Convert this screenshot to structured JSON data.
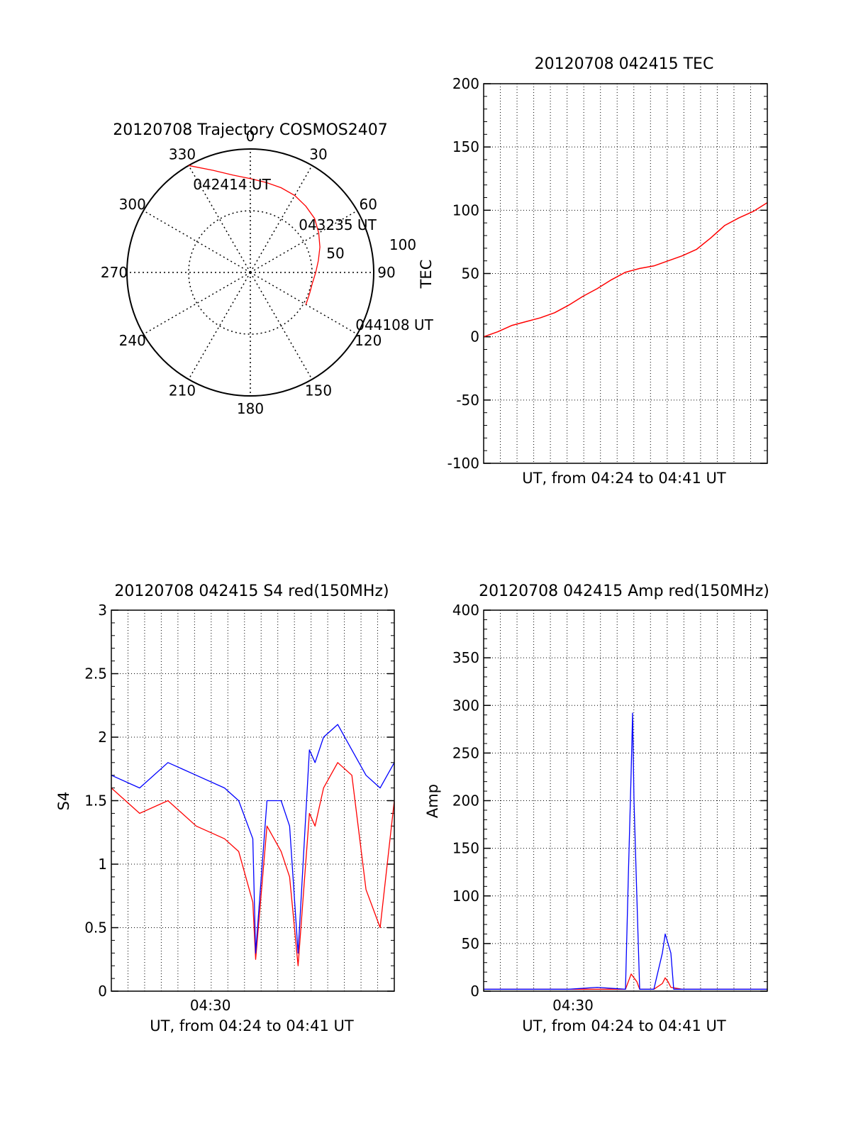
{
  "colors": {
    "red": "#ff0000",
    "blue": "#0000ff",
    "axis": "#000000"
  },
  "chart_data": [
    {
      "type": "polar",
      "title": "20120708 Trajectory COSMOS2407",
      "azimuth_labels": [
        "0",
        "30",
        "60",
        "90",
        "120",
        "150",
        "180",
        "210",
        "240",
        "270",
        "300",
        "330"
      ],
      "radius_labels": [
        "50",
        "100"
      ],
      "radius_range": [
        0,
        100
      ],
      "grid": true,
      "trajectory": {
        "azimuth_deg": [
          330,
          340,
          350,
          0,
          10,
          20,
          30,
          40,
          50,
          60,
          70,
          80,
          90,
          100,
          110,
          120
        ],
        "radius": [
          100,
          88,
          80,
          76,
          74,
          73,
          72,
          70,
          68,
          64,
          60,
          56,
          53,
          51,
          51,
          52
        ]
      },
      "annotations": [
        {
          "text": "042414 UT",
          "azimuth_deg": 330
        },
        {
          "text": "043235 UT",
          "azimuth_deg": 66
        },
        {
          "text": "044108 UT",
          "azimuth_deg": 118
        }
      ]
    },
    {
      "type": "line",
      "title": "20120708 042415 TEC",
      "xlabel": "UT, from 04:24 to 04:41 UT",
      "ylabel": "TEC",
      "ylim": [
        -100,
        200
      ],
      "yticks": [
        "-100",
        "-50",
        "0",
        "50",
        "100",
        "150",
        "200"
      ],
      "grid": true,
      "series": [
        {
          "x": [
            0,
            0.05,
            0.1,
            0.15,
            0.2,
            0.25,
            0.3,
            0.35,
            0.4,
            0.45,
            0.5,
            0.55,
            0.6,
            0.65,
            0.7,
            0.75,
            0.8,
            0.85,
            0.9,
            0.95,
            1.0
          ],
          "values": [
            0,
            4,
            9,
            12,
            15,
            19,
            25,
            32,
            38,
            45,
            51,
            54,
            56,
            60,
            64,
            69,
            78,
            88,
            94,
            99,
            106
          ]
        }
      ]
    },
    {
      "type": "line",
      "title": "20120708 042415 S4 red(150MHz)",
      "xlabel": "UT, from 04:24 to 04:41 UT",
      "ylabel": "S4",
      "ylim": [
        0,
        3
      ],
      "yticks": [
        "0",
        "0.5",
        "1",
        "1.5",
        "2",
        "2.5",
        "3"
      ],
      "xtick": "04:30",
      "grid": true,
      "series": [
        {
          "x": [
            0,
            0.1,
            0.2,
            0.3,
            0.4,
            0.45,
            0.5,
            0.51,
            0.55,
            0.6,
            0.63,
            0.66,
            0.7,
            0.72,
            0.75,
            0.8,
            0.85,
            0.9,
            0.95,
            1.0
          ],
          "values": [
            1.6,
            1.4,
            1.5,
            1.3,
            1.2,
            1.1,
            0.7,
            0.25,
            1.3,
            1.1,
            0.9,
            0.2,
            1.4,
            1.3,
            1.6,
            1.8,
            1.7,
            0.8,
            0.5,
            1.5
          ]
        },
        {
          "x": [
            0,
            0.1,
            0.2,
            0.3,
            0.4,
            0.45,
            0.5,
            0.51,
            0.55,
            0.6,
            0.63,
            0.66,
            0.7,
            0.72,
            0.75,
            0.8,
            0.85,
            0.9,
            0.95,
            1.0
          ],
          "values": [
            1.7,
            1.6,
            1.8,
            1.7,
            1.6,
            1.5,
            1.2,
            0.3,
            1.5,
            1.5,
            1.3,
            0.3,
            1.9,
            1.8,
            2.0,
            2.1,
            1.9,
            1.7,
            1.6,
            1.8
          ]
        }
      ]
    },
    {
      "type": "line",
      "title": "20120708 042415 Amp red(150MHz)",
      "xlabel": "UT, from 04:24 to 04:41 UT",
      "ylabel": "Amp",
      "ylim": [
        0,
        400
      ],
      "yticks": [
        "0",
        "50",
        "100",
        "150",
        "200",
        "250",
        "300",
        "350",
        "400"
      ],
      "xtick": "04:30",
      "grid": true,
      "series": [
        {
          "x": [
            0,
            0.3,
            0.5,
            0.51,
            0.52,
            0.53,
            0.54,
            0.55,
            0.6,
            0.63,
            0.64,
            0.65,
            0.66,
            0.7,
            1.0
          ],
          "values": [
            2,
            2,
            2,
            10,
            18,
            14,
            10,
            2,
            2,
            8,
            14,
            10,
            4,
            2,
            2
          ]
        },
        {
          "x": [
            0,
            0.3,
            0.4,
            0.5,
            0.51,
            0.52,
            0.525,
            0.53,
            0.54,
            0.55,
            0.6,
            0.63,
            0.64,
            0.65,
            0.66,
            0.67,
            0.7,
            1.0
          ],
          "values": [
            2,
            2,
            4,
            2,
            120,
            230,
            292,
            200,
            100,
            2,
            2,
            40,
            60,
            50,
            40,
            2,
            2,
            2
          ]
        }
      ]
    }
  ]
}
